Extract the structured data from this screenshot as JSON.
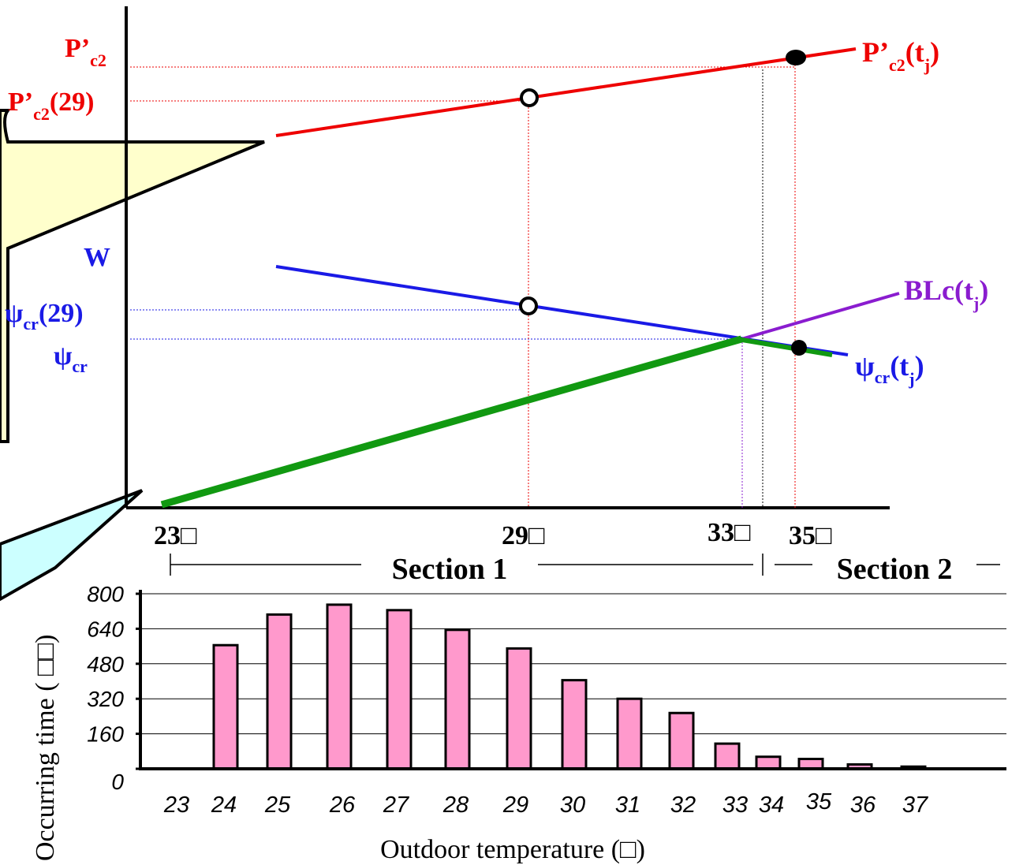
{
  "colors": {
    "red": "#ee0000",
    "blue": "#1a1ae6",
    "green": "#119911",
    "purple": "#8a1ccf",
    "bar_fill": "#ff99cc",
    "callout_yellow": "#ffffcc",
    "callout_cyan": "#ccffff"
  },
  "chart_data": [
    {
      "type": "line",
      "x_ticks": [
        "23",
        "29",
        "33",
        "35"
      ],
      "x_unit_glyph": "□",
      "y_labels": {
        "pc2": "P’",
        "pc2_sub": "c2",
        "pc2_29": "P’",
        "pc2_29_sub": "c2",
        "pc2_29_tail": "(29)",
        "w": "W",
        "psi_29": "ψ",
        "psi_29_sub": "cr",
        "psi_29_tail": "(29)",
        "psi": "ψ",
        "psi_sub": "cr"
      },
      "series": [
        {
          "name": "P’c2(tj)",
          "label_main": "P’",
          "label_sub": "c2",
          "label_tail": "(t",
          "label_sub2": "j",
          "label_end": ")",
          "color": "#ee0000"
        },
        {
          "name": "ψcr(tj)",
          "label_main": "ψ",
          "label_sub": "cr",
          "label_tail": "(t",
          "label_sub2": "j",
          "label_end": ")",
          "color": "#1a1ae6"
        },
        {
          "name": "BLc(tj)",
          "label_main": "BLc(t",
          "label_sub": "j",
          "label_end": ")",
          "color": "#8a1ccf"
        }
      ],
      "sections": [
        {
          "label": "Section 1",
          "from": 23,
          "to": 33.5
        },
        {
          "label": "Section 2",
          "from": 33.5,
          "to": 37
        }
      ]
    },
    {
      "type": "bar",
      "xlabel": "Outdoor temperature (□)",
      "ylabel": "Occurring time ( □□)",
      "categories": [
        "23",
        "24",
        "25",
        "26",
        "27",
        "28",
        "29",
        "30",
        "31",
        "32",
        "33",
        "34",
        "35",
        "36",
        "37"
      ],
      "values": [
        0,
        565,
        705,
        750,
        725,
        635,
        550,
        405,
        320,
        255,
        115,
        55,
        45,
        20,
        10
      ],
      "y_ticks": [
        "0",
        "160",
        "320",
        "480",
        "640",
        "800"
      ],
      "ylim": [
        0,
        800
      ],
      "grid": true
    }
  ]
}
